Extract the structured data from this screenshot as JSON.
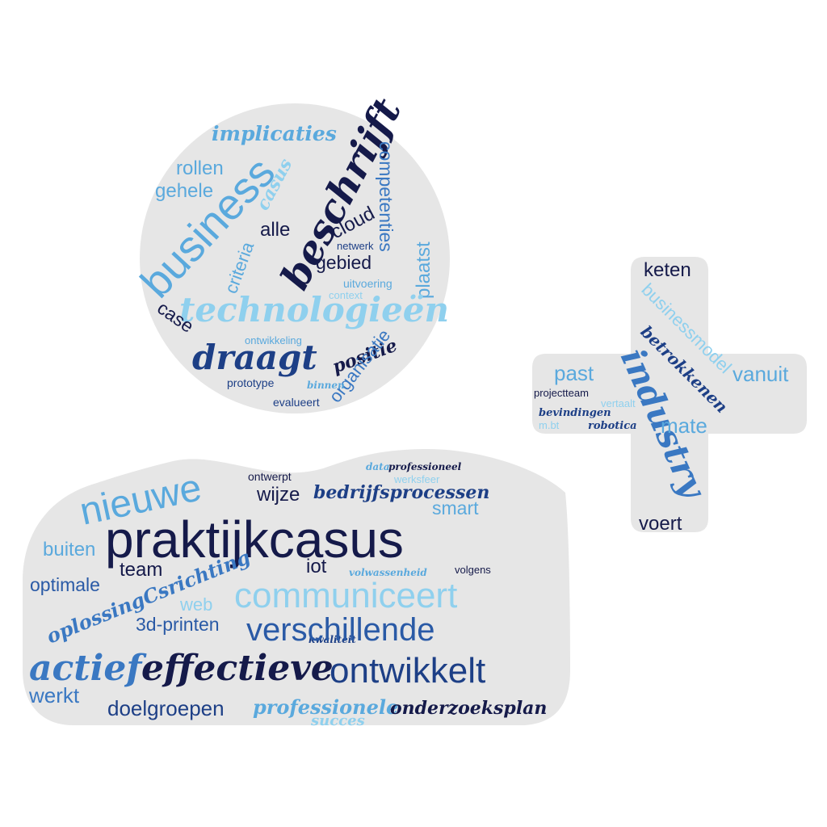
{
  "palette": {
    "light": "#8fd0ee",
    "sky": "#5aa9dd",
    "mid": "#3a78c2",
    "royal": "#2a5aa6",
    "navy": "#1d3f86",
    "dark": "#151a4a",
    "shape_fill": "#e6e6e6"
  },
  "circle_words": {
    "w01": "implicaties",
    "w02": "beschrijft",
    "w03": "competenties",
    "w04": "rollen",
    "w05": "business",
    "w06": "gehele",
    "w07": "casus",
    "w08": "cloud",
    "w09": "alle",
    "w10": "criteria",
    "w11": "netwerk",
    "w12": "gebied",
    "w13": "plaatst",
    "w14": "uitvoering",
    "w15": "context",
    "w16": "technologieën",
    "w17": "case",
    "w18": "ontwikkeling",
    "w19": "draagt",
    "w20": "positie",
    "w21": "organisatie",
    "w22": "binnen",
    "w23": "prototype",
    "w24": "evalueert"
  },
  "cross_words": {
    "w01": "keten",
    "w02": "businessmodel",
    "w03": "betrokkenen",
    "w04": "past",
    "w05": "vanuit",
    "w06": "industry",
    "w07": "projectteam",
    "w08": "vertaalt",
    "w09": "bevindingen",
    "w10": "m.bt",
    "w11": "robotica",
    "w12": "mate",
    "w13": "voert"
  },
  "blob_words": {
    "w01": "ontwerpt",
    "w02": "data",
    "w03": "professioneel",
    "w04": "werksfeer",
    "w05": "nieuwe",
    "w06": "wijze",
    "w07": "bedrijfsprocessen",
    "w08": "smart",
    "w09": "praktijkcasus",
    "w10": "buiten",
    "w11": "team",
    "w12": "iot",
    "w13": "volwassenheid",
    "w14": "volgens",
    "w15": "optimale",
    "w16": "oplossingCsrichting",
    "w17": "communiceert",
    "w18": "web",
    "w19": "3d-printen",
    "w20": "kwaliteit",
    "w21": "verschillende",
    "w22": "actief",
    "w23": "effectieve",
    "w24": "ontwikkelt",
    "w25": "werkt",
    "w26": "doelgroepen",
    "w27": "professionele",
    "w28": "onderzoeksplan",
    "w29": "succes"
  }
}
